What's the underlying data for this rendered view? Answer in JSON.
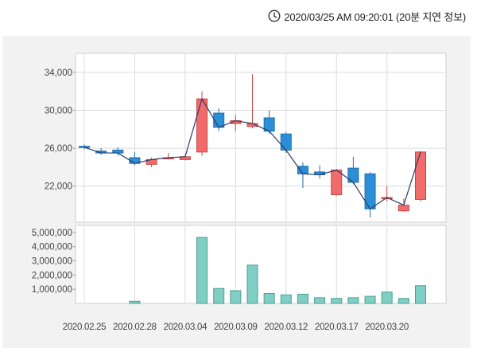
{
  "header": {
    "timestamp": "2020/03/25 AM 09:20:01 (20분 지연 정보)",
    "clock_icon": "clock-icon"
  },
  "colors": {
    "up": "#f26b6b",
    "up_border": "#c94545",
    "down": "#2a8fd6",
    "down_border": "#1f6fa8",
    "line": "#2f3a6b",
    "volume": "#7fcfc4",
    "volume_border": "#4f9e95",
    "panel_bg": "#f2f2f2",
    "grid": "#dcdcdc"
  },
  "chart_data": [
    {
      "type": "candlestick",
      "name": "price",
      "ylim": [
        18200,
        36000
      ],
      "yticks": [
        22000,
        26000,
        30000,
        34000
      ],
      "ytick_labels": [
        "22,000",
        "26,000",
        "30,000",
        "34,000"
      ],
      "x_tick_labels": [
        "2020.02.25",
        "2020.02.28",
        "2020.03.04",
        "2020.03.09",
        "2020.03.12",
        "2020.03.17",
        "2020.03.20"
      ],
      "x_tick_index": [
        0,
        3,
        6,
        9,
        12,
        15,
        18
      ],
      "grid": true,
      "candles": [
        {
          "o": 26200,
          "c": 26100,
          "h": 26400,
          "l": 25900
        },
        {
          "o": 25700,
          "c": 25500,
          "h": 26000,
          "l": 25300
        },
        {
          "o": 25800,
          "c": 25500,
          "h": 26100,
          "l": 25200
        },
        {
          "o": 25000,
          "c": 24400,
          "h": 25600,
          "l": 24200
        },
        {
          "o": 24300,
          "c": 24800,
          "h": 25000,
          "l": 24000
        },
        {
          "o": 24900,
          "c": 25000,
          "h": 25500,
          "l": 24800
        },
        {
          "o": 24800,
          "c": 25100,
          "h": 25300,
          "l": 24700
        },
        {
          "o": 25600,
          "c": 31200,
          "h": 32000,
          "l": 25200
        },
        {
          "o": 29700,
          "c": 28200,
          "h": 30200,
          "l": 27800
        },
        {
          "o": 28600,
          "c": 28900,
          "h": 29500,
          "l": 27800
        },
        {
          "o": 28300,
          "c": 28600,
          "h": 33800,
          "l": 28100
        },
        {
          "o": 29200,
          "c": 27800,
          "h": 30000,
          "l": 27500
        },
        {
          "o": 27500,
          "c": 25800,
          "h": 27700,
          "l": 25500
        },
        {
          "o": 24100,
          "c": 23300,
          "h": 24500,
          "l": 21800
        },
        {
          "o": 23500,
          "c": 23200,
          "h": 24200,
          "l": 22800
        },
        {
          "o": 21100,
          "c": 23700,
          "h": 23800,
          "l": 21000
        },
        {
          "o": 23900,
          "c": 22400,
          "h": 25100,
          "l": 22200
        },
        {
          "o": 23300,
          "c": 19600,
          "h": 23500,
          "l": 18700
        },
        {
          "o": 20800,
          "c": 20800,
          "h": 22000,
          "l": 20400
        },
        {
          "o": 19400,
          "c": 20000,
          "h": 20700,
          "l": 19300
        },
        {
          "o": 20600,
          "c": 25600,
          "h": 25700,
          "l": 20400
        }
      ],
      "closing_line": [
        26100,
        25500,
        25500,
        24400,
        24800,
        25000,
        25100,
        31200,
        28200,
        28900,
        28600,
        27800,
        25800,
        23300,
        23200,
        23700,
        22400,
        19600,
        20800,
        20000,
        25600
      ]
    },
    {
      "type": "bar",
      "name": "volume",
      "ylim": [
        0,
        5500000
      ],
      "yticks": [
        1000000,
        2000000,
        3000000,
        4000000,
        5000000
      ],
      "ytick_labels": [
        "1,000,000",
        "2,000,000",
        "3,000,000",
        "4,000,000",
        "5,000,000"
      ],
      "values": [
        0,
        0,
        0,
        150000,
        0,
        0,
        0,
        4650000,
        1050000,
        900000,
        2700000,
        700000,
        600000,
        650000,
        400000,
        350000,
        400000,
        500000,
        800000,
        350000,
        1250000
      ]
    }
  ]
}
